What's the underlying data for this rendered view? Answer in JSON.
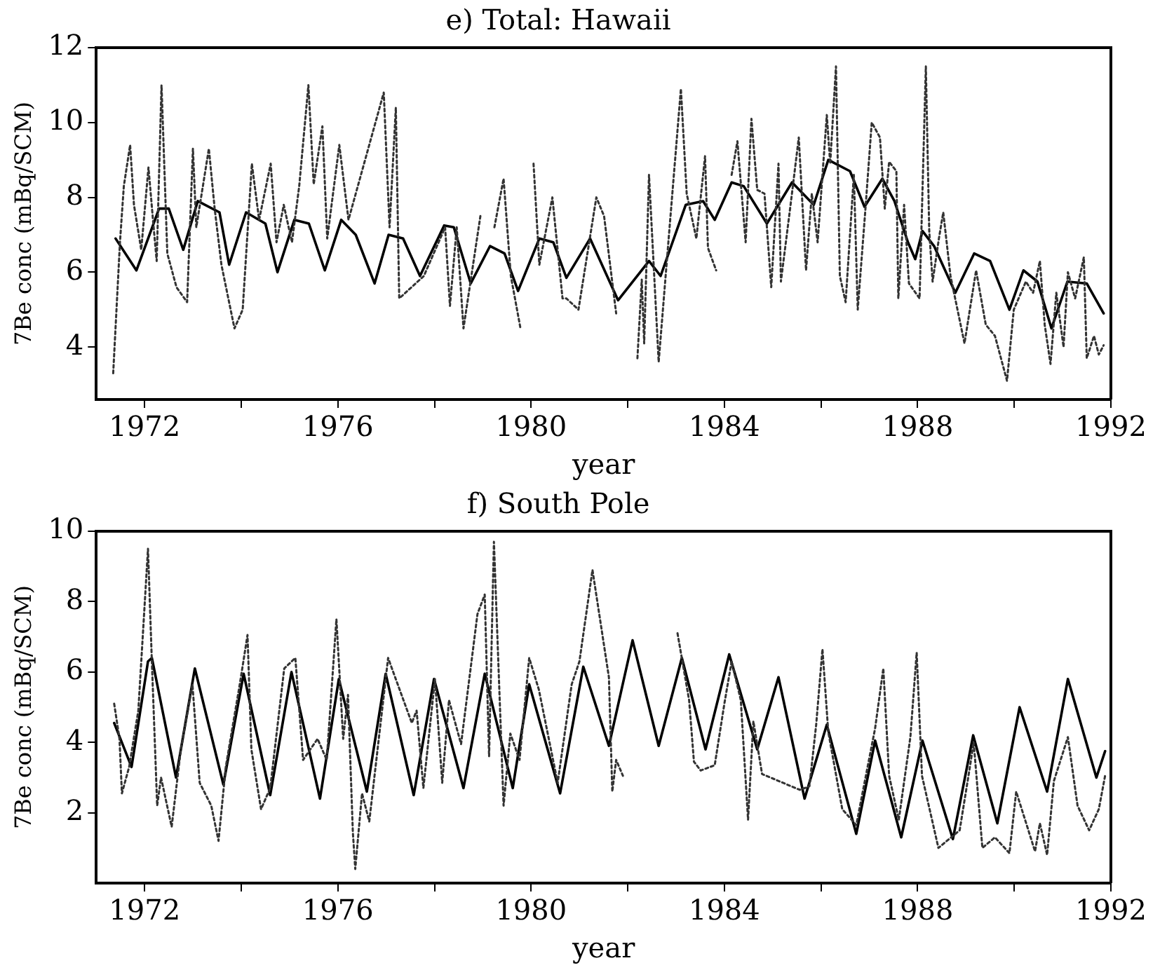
{
  "chart_data": [
    {
      "type": "line",
      "title": "e) Total: Hawaii",
      "xlabel": "year",
      "ylabel": "7Be conc (mBq/SCM)",
      "xlim": [
        1971,
        1992
      ],
      "xticks": [
        1972,
        {
          "value": 1974,
          "label": null
        },
        1976,
        {
          "value": 1978,
          "label": null
        },
        1980,
        {
          "value": 1982,
          "label": null
        },
        1984,
        {
          "value": 1986,
          "label": null
        },
        1988,
        {
          "value": 1990,
          "label": null
        },
        1992
      ],
      "ylim": [
        2.6,
        12
      ],
      "yticks": [
        4,
        6,
        8,
        10,
        12
      ],
      "grid": false,
      "legend": false,
      "marker": "none",
      "series": [
        {
          "color": "#333333",
          "line_style": "dotted",
          "x": [
            1971.35,
            1971.49,
            1971.57,
            1971.7,
            1971.78,
            1971.93,
            1972.08,
            1972.18,
            1972.25,
            1972.35,
            1972.47,
            1972.66,
            1972.88,
            1973.0,
            1973.07,
            1973.33,
            1973.45,
            1973.59,
            1973.86,
            1974.03,
            1974.22,
            1974.37,
            1974.61,
            1974.73,
            1974.88,
            1975.05,
            1975.2,
            1975.39,
            1975.5,
            1975.68,
            1975.78,
            1976.03,
            1976.22,
            1976.95,
            1977.07,
            1977.2,
            1977.27,
            1977.78,
            1978.22,
            1978.32,
            1978.46,
            1978.6,
            1978.95,
            1979.1,
            1979.24,
            1979.43,
            1979.58,
            1979.78,
            1979.88,
            1980.05,
            1980.17,
            1980.44,
            1980.65,
            1980.73,
            1980.98,
            1981.35,
            1981.51,
            1981.76,
            1981.95,
            1982.2,
            1982.29,
            1982.34,
            1982.44,
            1982.64,
            1982.85,
            1983.1,
            1983.22,
            1983.42,
            1983.6,
            1983.66,
            1983.83,
            1984.0,
            1984.15,
            1984.27,
            1984.44,
            1984.56,
            1984.68,
            1984.83,
            1984.97,
            1985.12,
            1985.17,
            1985.37,
            1985.54,
            1985.69,
            1985.81,
            1985.93,
            1986.12,
            1986.19,
            1986.31,
            1986.39,
            1986.51,
            1986.68,
            1986.76,
            1986.92,
            1987.05,
            1987.22,
            1987.32,
            1987.41,
            1987.56,
            1987.6,
            1987.72,
            1987.82,
            1988.04,
            1988.17,
            1988.24,
            1988.31,
            1988.44,
            1988.53,
            1988.68,
            1988.97,
            1989.21,
            1989.41,
            1989.6,
            1989.85,
            1989.99,
            1990.24,
            1990.39,
            1990.53,
            1990.63,
            1990.75,
            1990.87,
            1991.02,
            1991.11,
            1991.26,
            1991.44,
            1991.5,
            1991.65,
            1991.75,
            1991.85
          ],
          "values": [
            3.3,
            6.8,
            8.3,
            9.4,
            7.8,
            6.6,
            8.8,
            7.3,
            6.3,
            11.0,
            6.5,
            5.6,
            5.2,
            9.3,
            7.2,
            9.3,
            7.7,
            6.2,
            4.5,
            5.0,
            8.9,
            7.4,
            8.9,
            6.8,
            7.8,
            6.8,
            8.3,
            11.0,
            8.35,
            9.9,
            6.9,
            9.4,
            7.4,
            10.8,
            7.2,
            10.4,
            5.3,
            5.9,
            7.2,
            5.1,
            7.2,
            4.5,
            7.5,
            null,
            7.2,
            8.5,
            5.9,
            4.5,
            null,
            8.9,
            6.2,
            8.0,
            5.3,
            5.3,
            5.0,
            8.0,
            7.5,
            4.9,
            null,
            3.7,
            5.8,
            4.1,
            8.6,
            3.6,
            6.95,
            10.9,
            8.1,
            6.9,
            9.1,
            6.65,
            6.05,
            null,
            8.6,
            9.5,
            6.8,
            10.1,
            8.2,
            8.1,
            5.6,
            8.9,
            5.75,
            7.8,
            9.6,
            6.05,
            8.1,
            6.8,
            10.2,
            8.9,
            11.5,
            5.9,
            5.2,
            8.6,
            5.0,
            7.7,
            10.0,
            9.6,
            7.7,
            8.95,
            8.7,
            5.3,
            7.8,
            5.7,
            5.3,
            11.5,
            7.1,
            5.75,
            6.9,
            7.6,
            5.9,
            4.1,
            6.05,
            4.6,
            4.3,
            3.1,
            5.0,
            5.75,
            5.45,
            6.3,
            4.6,
            3.55,
            5.45,
            4.0,
            6.0,
            5.3,
            6.4,
            3.7,
            4.3,
            3.8,
            4.05
          ]
        },
        {
          "color": "#000000",
          "line_style": "solid",
          "x": [
            1971.4,
            1971.83,
            1972.3,
            1972.5,
            1972.8,
            1973.1,
            1973.55,
            1973.75,
            1974.1,
            1974.5,
            1974.75,
            1975.1,
            1975.4,
            1975.73,
            1976.07,
            1976.37,
            1976.76,
            1977.05,
            1977.35,
            1977.7,
            1978.2,
            1978.4,
            1978.75,
            1979.15,
            1979.45,
            1979.73,
            1980.17,
            1980.46,
            1980.73,
            1981.22,
            1981.8,
            1982.44,
            1982.68,
            1983.2,
            1983.56,
            1983.8,
            1984.15,
            1984.4,
            1984.88,
            1985.4,
            1985.85,
            1986.15,
            1986.6,
            1986.9,
            1987.27,
            1987.52,
            1987.8,
            1987.95,
            1988.1,
            1988.34,
            1988.78,
            1989.17,
            1989.5,
            1989.9,
            1990.19,
            1990.48,
            1990.77,
            1991.1,
            1991.5,
            1991.85
          ],
          "values": [
            6.9,
            6.05,
            7.7,
            7.7,
            6.6,
            7.9,
            7.6,
            6.2,
            7.6,
            7.3,
            6.0,
            7.4,
            7.3,
            6.05,
            7.4,
            7.0,
            5.7,
            7.0,
            6.9,
            5.9,
            7.25,
            7.2,
            5.7,
            6.7,
            6.5,
            5.5,
            6.9,
            6.8,
            5.85,
            6.9,
            5.25,
            6.3,
            5.9,
            7.8,
            7.9,
            7.4,
            8.4,
            8.3,
            7.3,
            8.4,
            7.8,
            9.0,
            8.7,
            7.75,
            8.5,
            7.9,
            6.8,
            6.35,
            7.1,
            6.7,
            5.45,
            6.5,
            6.3,
            5.0,
            6.05,
            5.75,
            4.5,
            5.75,
            5.7,
            4.9
          ]
        }
      ]
    },
    {
      "type": "line",
      "title": "f) South Pole",
      "xlabel": "year",
      "ylabel": "7Be conc (mBq/SCM)",
      "xlim": [
        1971,
        1992
      ],
      "xticks": [
        1972,
        {
          "value": 1974,
          "label": null
        },
        1976,
        {
          "value": 1978,
          "label": null
        },
        1980,
        {
          "value": 1982,
          "label": null
        },
        1984,
        {
          "value": 1986,
          "label": null
        },
        1988,
        {
          "value": 1990,
          "label": null
        },
        1992
      ],
      "ylim": [
        0,
        10
      ],
      "yticks": [
        2,
        4,
        6,
        8,
        10
      ],
      "grid": false,
      "legend": false,
      "marker": "none",
      "series": [
        {
          "color": "#333333",
          "line_style": "dotted",
          "x": [
            1971.37,
            1971.48,
            1971.53,
            1971.68,
            1971.87,
            1972.07,
            1972.15,
            1972.26,
            1972.34,
            1972.56,
            1972.75,
            1972.99,
            1973.14,
            1973.38,
            1973.53,
            1973.68,
            1973.97,
            1974.13,
            1974.21,
            1974.41,
            1974.6,
            1974.89,
            1975.12,
            1975.28,
            1975.58,
            1975.77,
            1975.97,
            1976.11,
            1976.21,
            1976.31,
            1976.36,
            1976.5,
            1976.65,
            1977.04,
            1977.53,
            1977.63,
            1977.77,
            1978.01,
            1978.16,
            1978.3,
            1978.55,
            1978.89,
            1979.04,
            1979.13,
            1979.23,
            1979.43,
            1979.57,
            1979.76,
            1979.96,
            1980.16,
            1980.55,
            1980.84,
            1981.0,
            1981.27,
            1981.61,
            1981.68,
            1981.76,
            1981.9,
            1982.39,
            1982.5,
            1983.03,
            1983.27,
            1983.37,
            1983.51,
            1983.8,
            1984.0,
            1984.15,
            1984.34,
            1984.49,
            1984.6,
            1984.78,
            1985.56,
            1985.76,
            1985.9,
            1986.03,
            1986.15,
            1986.44,
            1986.73,
            1987.12,
            1987.29,
            1987.41,
            1987.61,
            1987.85,
            1987.98,
            1988.09,
            1988.43,
            1988.87,
            1989.07,
            1989.16,
            1989.34,
            1989.6,
            1989.9,
            1990.04,
            1990.43,
            1990.53,
            1990.68,
            1990.82,
            1991.11,
            1991.31,
            1991.55,
            1991.75,
            1991.88
          ],
          "values": [
            5.1,
            4.1,
            2.55,
            3.3,
            4.9,
            9.5,
            6.3,
            2.2,
            3.0,
            1.6,
            3.8,
            5.65,
            2.85,
            2.2,
            1.2,
            3.3,
            5.65,
            7.05,
            3.8,
            2.1,
            2.7,
            6.1,
            6.4,
            3.5,
            4.1,
            3.5,
            7.5,
            4.1,
            5.35,
            1.45,
            0.4,
            2.55,
            1.75,
            6.4,
            4.55,
            4.9,
            2.7,
            5.8,
            2.85,
            5.2,
            3.95,
            7.65,
            8.2,
            3.6,
            9.7,
            2.2,
            4.25,
            3.5,
            6.4,
            5.5,
            2.85,
            5.65,
            6.3,
            8.9,
            5.85,
            2.6,
            3.5,
            3.05,
            null,
            null,
            7.1,
            5.2,
            3.45,
            3.2,
            3.35,
            5.1,
            6.3,
            5.2,
            1.8,
            4.6,
            3.1,
            2.65,
            2.75,
            4.5,
            6.65,
            4.3,
            2.1,
            1.65,
            4.4,
            6.1,
            3.05,
            1.8,
            4.15,
            6.55,
            3.05,
            1.0,
            1.5,
            3.2,
            4.0,
            1.0,
            1.3,
            0.85,
            2.6,
            0.9,
            1.7,
            0.8,
            2.9,
            4.15,
            2.2,
            1.5,
            2.1,
            3.05
          ]
        },
        {
          "color": "#000000",
          "line_style": "solid",
          "x": [
            1971.37,
            1971.73,
            1972.07,
            1972.15,
            1972.65,
            1973.04,
            1973.63,
            1974.05,
            1974.6,
            1975.04,
            1975.63,
            1976.02,
            1976.6,
            1976.99,
            1977.57,
            1977.99,
            1978.6,
            1979.04,
            1979.62,
            1979.96,
            1980.6,
            1981.08,
            1981.61,
            1982.1,
            1982.64,
            1983.12,
            1983.61,
            1984.1,
            1984.68,
            1985.12,
            1985.66,
            1986.12,
            1986.73,
            1987.12,
            1987.66,
            1988.1,
            1988.73,
            1989.15,
            1989.65,
            1990.11,
            1990.68,
            1991.11,
            1991.7,
            1991.88
          ],
          "values": [
            4.55,
            3.3,
            6.3,
            6.4,
            3.0,
            6.1,
            2.8,
            5.95,
            2.5,
            6.0,
            2.4,
            5.8,
            2.6,
            5.95,
            2.5,
            5.8,
            2.7,
            5.95,
            2.7,
            5.65,
            2.55,
            6.15,
            3.9,
            6.9,
            3.9,
            6.4,
            3.8,
            6.5,
            3.8,
            5.85,
            2.4,
            4.5,
            1.4,
            4.05,
            1.3,
            4.05,
            1.25,
            4.2,
            1.7,
            5.0,
            2.6,
            5.8,
            3.0,
            3.75
          ]
        }
      ]
    }
  ]
}
